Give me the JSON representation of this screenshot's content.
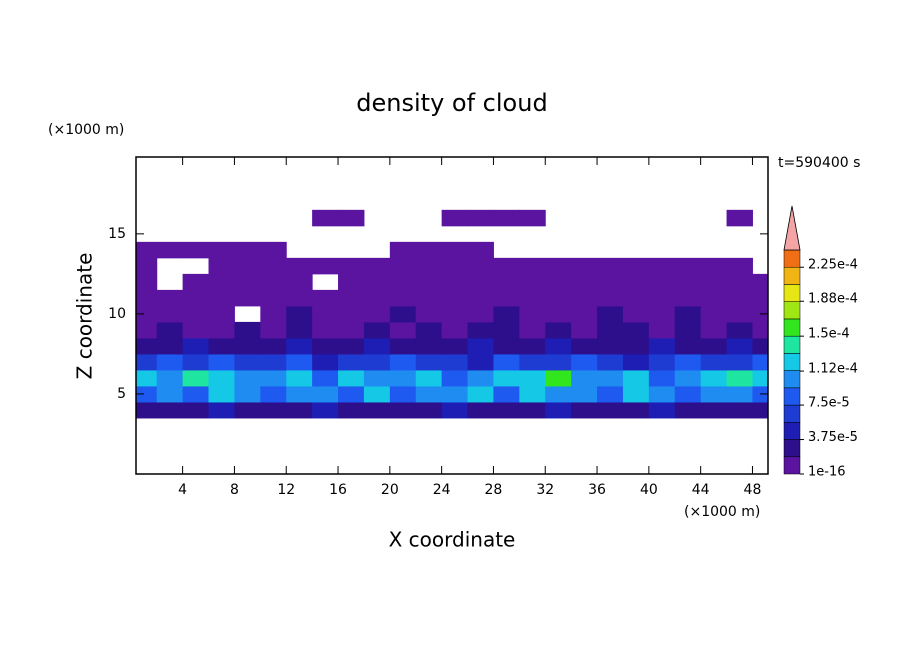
{
  "chart_data": {
    "type": "contour",
    "title": "density of cloud",
    "subtitle": "t=590400 s",
    "x_label": "X coordinate",
    "y_label": "Z coordinate",
    "x_unit": "(×1000 m)",
    "y_unit": "(×1000 m)",
    "xlim": [
      0.4,
      49.2
    ],
    "ylim": [
      0,
      19.8
    ],
    "xticks": [
      4,
      8,
      12,
      16,
      20,
      24,
      28,
      32,
      36,
      40,
      44,
      48
    ],
    "yticks": [
      5,
      10,
      15
    ],
    "x": [
      1,
      3,
      5,
      7,
      9,
      11,
      13,
      15,
      17,
      19,
      21,
      23,
      25,
      27,
      29,
      31,
      33,
      35,
      37,
      39,
      41,
      43,
      45,
      47,
      49
    ],
    "z": [
      4,
      5,
      6,
      7,
      8,
      9,
      10,
      11,
      12,
      13,
      14,
      15,
      16
    ],
    "values": [
      [
        2e-05,
        3e-05,
        2e-05,
        4e-05,
        2e-05,
        3e-05,
        2e-05,
        4e-05,
        3e-05,
        2e-05,
        3e-05,
        2e-05,
        4e-05,
        3e-05,
        2e-05,
        3e-05,
        4e-05,
        2e-05,
        3e-05,
        2e-05,
        4e-05,
        3e-05,
        2e-05,
        3e-05,
        2e-05
      ],
      [
        9e-05,
        0.00011,
        8e-05,
        0.00012,
        0.0001,
        9e-05,
        0.00011,
        0.0001,
        8e-05,
        0.00012,
        9e-05,
        0.00011,
        0.0001,
        0.00012,
        9e-05,
        0.00013,
        0.0001,
        0.00011,
        9e-05,
        0.00012,
        0.0001,
        8e-05,
        0.00011,
        0.0001,
        9e-05
      ],
      [
        0.00013,
        0.00011,
        0.00014,
        0.00012,
        0.0001,
        0.00011,
        0.00013,
        9e-05,
        0.00012,
        0.0001,
        0.00011,
        0.00012,
        9e-05,
        0.00011,
        0.00013,
        0.00012,
        0.00016,
        0.00011,
        0.0001,
        0.00012,
        9e-05,
        0.00011,
        0.00012,
        0.00014,
        0.00012
      ],
      [
        7e-05,
        8e-05,
        6e-05,
        9e-05,
        7e-05,
        6e-05,
        8e-05,
        5e-05,
        7e-05,
        6e-05,
        8e-05,
        6e-05,
        7e-05,
        5e-05,
        8e-05,
        7e-05,
        6e-05,
        8e-05,
        7e-05,
        5e-05,
        7e-05,
        8e-05,
        6e-05,
        7e-05,
        8e-05
      ],
      [
        3e-05,
        2e-05,
        4e-05,
        3e-05,
        2e-05,
        3e-05,
        4e-05,
        2e-05,
        3e-05,
        4e-05,
        2e-05,
        3e-05,
        3e-05,
        4e-05,
        2e-05,
        3e-05,
        4e-05,
        3e-05,
        2e-05,
        3e-05,
        4e-05,
        2e-05,
        3e-05,
        4e-05,
        3e-05
      ],
      [
        1e-05,
        2e-05,
        1e-05,
        1e-05,
        2e-05,
        1e-05,
        2e-05,
        1e-05,
        1e-05,
        2e-05,
        1e-05,
        2e-05,
        1e-05,
        2e-05,
        2e-05,
        1e-05,
        2e-05,
        1e-05,
        2e-05,
        2e-05,
        1e-05,
        2e-05,
        1e-05,
        2e-05,
        1e-05
      ],
      [
        1e-05,
        1e-05,
        1e-05,
        1e-05,
        null,
        1e-05,
        2e-05,
        1e-05,
        1e-05,
        1e-05,
        2e-05,
        1e-05,
        1e-05,
        1e-05,
        2e-05,
        1e-05,
        1e-05,
        1e-05,
        2e-05,
        1e-05,
        1e-05,
        2e-05,
        1e-05,
        1e-05,
        1e-05
      ],
      [
        5e-06,
        5e-06,
        5e-06,
        5e-06,
        5e-06,
        5e-06,
        5e-06,
        5e-06,
        5e-06,
        5e-06,
        5e-06,
        5e-06,
        5e-06,
        5e-06,
        5e-06,
        5e-06,
        5e-06,
        5e-06,
        5e-06,
        5e-06,
        5e-06,
        5e-06,
        5e-06,
        5e-06,
        5e-06
      ],
      [
        1e-06,
        null,
        1e-06,
        1e-06,
        1e-06,
        1e-06,
        1e-06,
        null,
        1e-06,
        1e-06,
        1e-06,
        1e-06,
        1e-06,
        1e-06,
        1e-06,
        1e-06,
        1e-06,
        1e-06,
        1e-06,
        1e-06,
        1e-06,
        1e-06,
        1e-06,
        1e-06,
        1e-06
      ],
      [
        1e-06,
        null,
        null,
        1e-06,
        1e-06,
        1e-06,
        1e-06,
        1e-06,
        1e-06,
        1e-06,
        1e-06,
        1e-06,
        1e-06,
        1e-06,
        1e-06,
        1e-06,
        1e-06,
        1e-06,
        1e-06,
        1e-06,
        1e-06,
        1e-06,
        1e-06,
        1e-06,
        null
      ],
      [
        1e-07,
        1e-07,
        1e-07,
        1e-07,
        1e-07,
        1e-07,
        null,
        null,
        null,
        null,
        1e-07,
        1e-07,
        1e-07,
        1e-07,
        null,
        null,
        null,
        null,
        null,
        null,
        null,
        null,
        null,
        null,
        null
      ],
      [
        null,
        null,
        null,
        null,
        null,
        null,
        null,
        null,
        null,
        null,
        null,
        null,
        null,
        null,
        null,
        null,
        null,
        null,
        null,
        null,
        null,
        null,
        null,
        null,
        null
      ],
      [
        null,
        null,
        null,
        null,
        null,
        null,
        null,
        1e-07,
        1e-07,
        null,
        null,
        null,
        1e-07,
        1e-07,
        1e-07,
        1e-07,
        null,
        null,
        null,
        null,
        null,
        null,
        null,
        1e-07,
        null
      ]
    ],
    "levels": [
      1e-16,
      1.875e-05,
      3.75e-05,
      5.625e-05,
      7.5e-05,
      9.375e-05,
      0.0001125,
      0.00013125,
      0.00015,
      0.00016875,
      0.0001875,
      0.00020625,
      0.000225,
      0.00024375
    ],
    "colors": [
      "#5a14a0",
      "#2d0f8c",
      "#1e1eb4",
      "#1e3cd2",
      "#1e5af0",
      "#1e8cf0",
      "#14c8e6",
      "#1ee6a0",
      "#32e61e",
      "#a0e614",
      "#e6e614",
      "#f0b414",
      "#f06e14"
    ],
    "extend_color": "#f4a4a4",
    "colorbar_ticks": [
      1e-16,
      {
        "value": 3.75e-05,
        "label": "3.75e-5"
      },
      {
        "value": 7.5e-05,
        "label": "7.5e-5"
      },
      {
        "value": 0.000112,
        "label": "1.12e-4"
      },
      {
        "value": 0.00015,
        "label": "1.5e-4"
      },
      {
        "value": 0.000188,
        "label": "1.88e-4"
      },
      {
        "value": 0.000225,
        "label": "2.25e-4"
      }
    ]
  }
}
